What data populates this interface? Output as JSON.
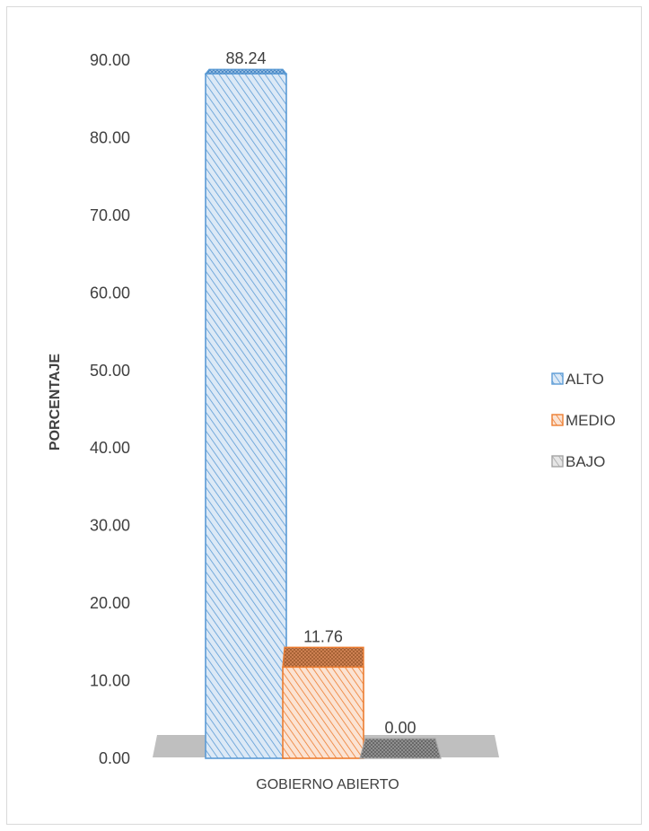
{
  "chart_data": {
    "type": "bar",
    "categories": [
      "GOBIERNO ABIERTO"
    ],
    "series": [
      {
        "name": "ALTO",
        "values": [
          88.24
        ],
        "color": "#5b9bd5"
      },
      {
        "name": "MEDIO",
        "values": [
          11.76
        ],
        "color": "#ed7d31"
      },
      {
        "name": "BAJO",
        "values": [
          0.0
        ],
        "color": "#a5a5a5"
      }
    ],
    "data_labels": [
      "88.24",
      "11.76",
      "0.00"
    ],
    "ylabel": "PORCENTAJE",
    "xlabel": "",
    "ylim": [
      0,
      90
    ],
    "yticks": [
      "0.00",
      "10.00",
      "20.00",
      "30.00",
      "40.00",
      "50.00",
      "60.00",
      "70.00",
      "80.00",
      "90.00"
    ],
    "grid": false,
    "legend": "right",
    "style": "3d-hatched"
  }
}
